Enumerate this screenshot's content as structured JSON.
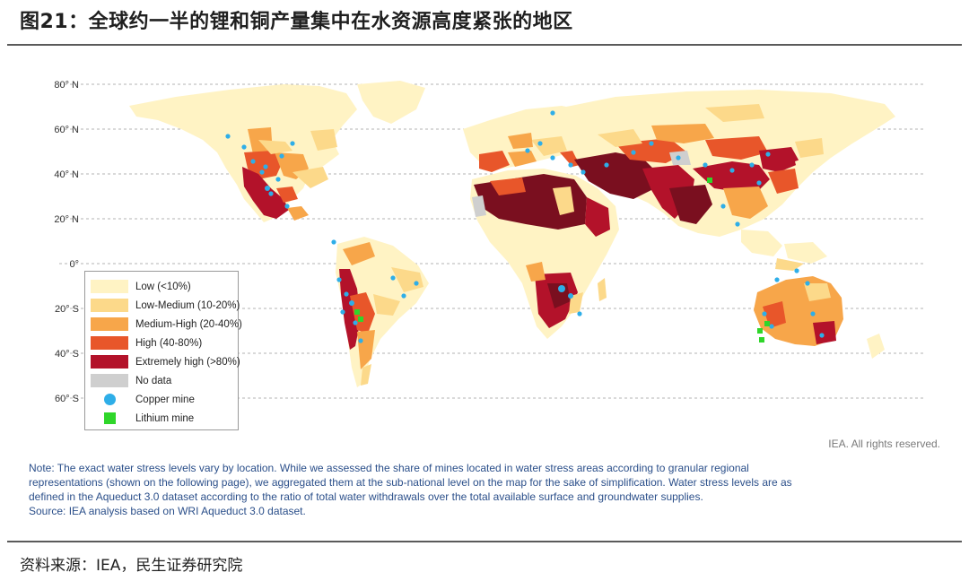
{
  "page": {
    "title": "图21：全球约一半的锂和铜产量集中在水资源高度紧张的地区",
    "source": "资料来源：IEA，民生证券研究院"
  },
  "map": {
    "latitude_labels": [
      "80° N",
      "60° N",
      "40° N",
      "20° N",
      "0°",
      "20° S",
      "40° S",
      "60° S"
    ],
    "rights": "IEA. All rights reserved.",
    "note_lines": [
      "Note: The exact water stress levels vary by location. While we assessed the share of mines located in water stress areas according to granular regional",
      "representations (shown on the following page), we aggregated them at the sub-national level on the map for the sake of simplification. Water stress levels are as",
      "defined in the Aqueduct 3.0 dataset according to the ratio of total water withdrawals over the total available surface and groundwater supplies.",
      "Source: IEA analysis based on WRI Aqueduct 3.0 dataset."
    ]
  },
  "legend": {
    "items": [
      {
        "label": "Low (<10%)",
        "color": "#fff3c4",
        "kind": "swatch"
      },
      {
        "label": "Low-Medium (10-20%)",
        "color": "#fcd98a",
        "kind": "swatch"
      },
      {
        "label": "Medium-High (20-40%)",
        "color": "#f7a64a",
        "kind": "swatch"
      },
      {
        "label": "High (40-80%)",
        "color": "#e8562a",
        "kind": "swatch"
      },
      {
        "label": "Extremely high (>80%)",
        "color": "#b3122a",
        "kind": "swatch"
      },
      {
        "label": "No data",
        "color": "#cfcfcf",
        "kind": "swatch"
      },
      {
        "label": "Copper mine",
        "color": "#2eaee8",
        "kind": "dot"
      },
      {
        "label": "Lithium mine",
        "color": "#2fd62a",
        "kind": "square"
      }
    ]
  },
  "colors": {
    "low": "#fff3c4",
    "low_medium": "#fcd98a",
    "medium_high": "#f7a64a",
    "high": "#e8562a",
    "extremely_high": "#b3122a",
    "darkest": "#7a0f1f",
    "no_data": "#cfcfcf",
    "copper": "#2eaee8",
    "lithium": "#2fd62a"
  }
}
